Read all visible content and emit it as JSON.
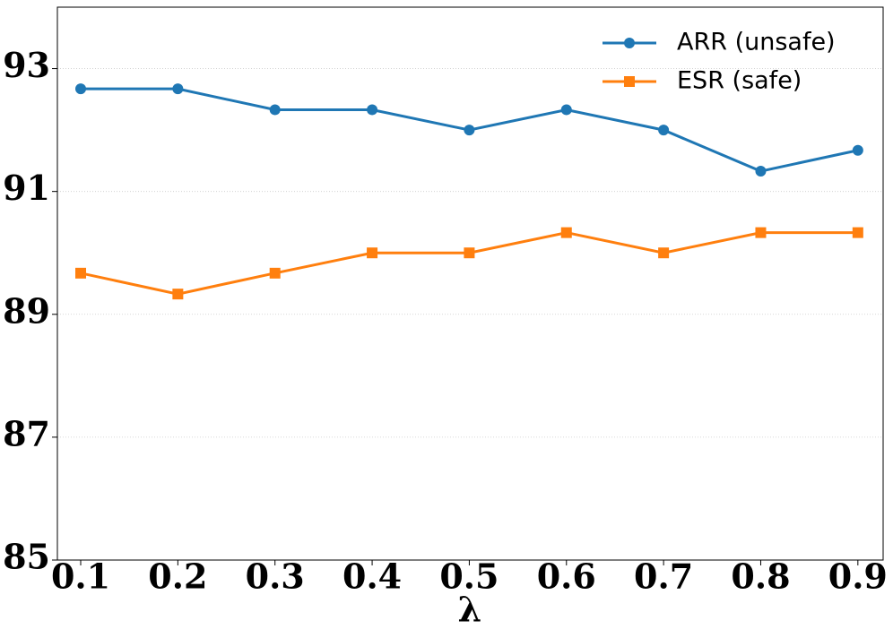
{
  "chart_data": {
    "type": "line",
    "x_label": "λ",
    "x": [
      0.1,
      0.2,
      0.3,
      0.4,
      0.5,
      0.6,
      0.7,
      0.8,
      0.9
    ],
    "series": [
      {
        "name": "ARR (unsafe)",
        "color": "#1f77b4",
        "marker": "circle",
        "values": [
          92.67,
          92.67,
          92.33,
          92.33,
          92.0,
          92.33,
          92.0,
          91.33,
          91.67
        ]
      },
      {
        "name": "ESR (safe)",
        "color": "#ff7f0e",
        "marker": "square",
        "values": [
          89.67,
          89.33,
          89.67,
          90.0,
          90.0,
          90.33,
          90.0,
          90.33,
          90.33
        ]
      }
    ],
    "xlim": [
      0.076,
      0.926
    ],
    "ylim": [
      85,
      94
    ],
    "xticks": [
      0.1,
      0.2,
      0.3,
      0.4,
      0.5,
      0.6,
      0.7,
      0.8,
      0.9
    ],
    "yticks": [
      85,
      87,
      89,
      91,
      93
    ],
    "grid": true,
    "legend": "upper right"
  }
}
